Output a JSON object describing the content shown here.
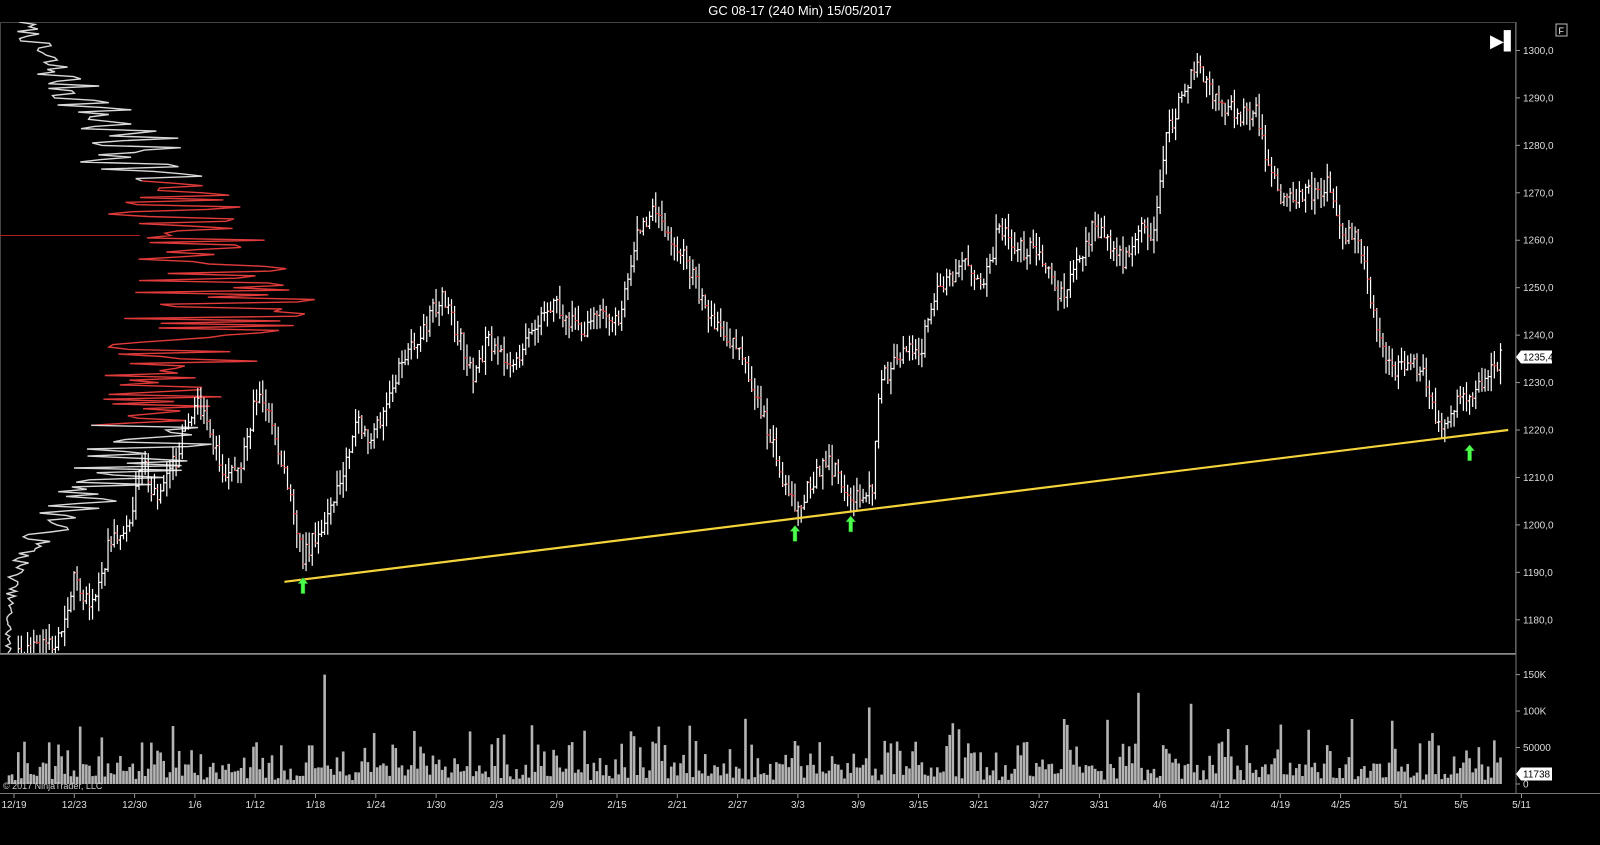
{
  "window": {
    "title": "GC 08-17 (240 Min)  15/05/2017"
  },
  "footer": {
    "copyright": "© 2017 NinjaTrader, LLC"
  },
  "buttons": {
    "end_label": "▶▌",
    "f_label": "F"
  },
  "colors": {
    "background": "#000000",
    "bar": "#ffffff",
    "bar_down": "#e03131",
    "trendline": "#f5d33a",
    "arrow": "#4cff4c",
    "volume": "#b4b4b4",
    "profile_low": "#d9d9d9",
    "profile_high": "#e03a3a"
  },
  "chart_data": [
    {
      "type": "ohlc",
      "name": "GC 08-17 (240 Min)",
      "x_ticks": [
        "12/19",
        "12/23",
        "12/30",
        "1/6",
        "1/12",
        "1/18",
        "1/24",
        "1/30",
        "2/3",
        "2/9",
        "2/15",
        "2/21",
        "2/27",
        "3/3",
        "3/9",
        "3/15",
        "3/21",
        "3/27",
        "3/31",
        "4/6",
        "4/12",
        "4/19",
        "4/25",
        "5/1",
        "5/5",
        "5/11"
      ],
      "y_ticks": [
        "1300,0",
        "1290,0",
        "1280,0",
        "1270,0",
        "1260,0",
        "1250,0",
        "1240,0",
        "1230,0",
        "1220,0",
        "1210,0",
        "1200,0",
        "1190,0",
        "1180,0"
      ],
      "ylim": [
        1173,
        1306
      ],
      "last_price": "1235,4",
      "price_path": [
        {
          "d": 0,
          "p": 1171
        },
        {
          "d": 3.2,
          "p": 1176
        },
        {
          "d": 4.2,
          "p": 1188
        },
        {
          "d": 5.4,
          "p": 1183
        },
        {
          "d": 6.5,
          "p": 1196
        },
        {
          "d": 7.8,
          "p": 1200
        },
        {
          "d": 8.6,
          "p": 1213
        },
        {
          "d": 9.6,
          "p": 1205
        },
        {
          "d": 10.8,
          "p": 1214
        },
        {
          "d": 12,
          "p": 1226
        },
        {
          "d": 13,
          "p": 1220
        },
        {
          "d": 14,
          "p": 1209
        },
        {
          "d": 15,
          "p": 1213
        },
        {
          "d": 16,
          "p": 1227
        },
        {
          "d": 17,
          "p": 1222
        },
        {
          "d": 18,
          "p": 1208
        },
        {
          "d": 19,
          "p": 1193
        },
        {
          "d": 20.5,
          "p": 1202
        },
        {
          "d": 21.5,
          "p": 1210
        },
        {
          "d": 22.5,
          "p": 1222
        },
        {
          "d": 23.5,
          "p": 1218
        },
        {
          "d": 25,
          "p": 1231
        },
        {
          "d": 26.5,
          "p": 1240
        },
        {
          "d": 28,
          "p": 1248
        },
        {
          "d": 29,
          "p": 1240
        },
        {
          "d": 30,
          "p": 1232
        },
        {
          "d": 31,
          "p": 1239
        },
        {
          "d": 32.5,
          "p": 1232
        },
        {
          "d": 33.5,
          "p": 1240
        },
        {
          "d": 35,
          "p": 1247
        },
        {
          "d": 36,
          "p": 1244
        },
        {
          "d": 37,
          "p": 1240
        },
        {
          "d": 38,
          "p": 1244
        },
        {
          "d": 39.5,
          "p": 1244
        },
        {
          "d": 40.5,
          "p": 1260
        },
        {
          "d": 41.5,
          "p": 1266
        },
        {
          "d": 42.5,
          "p": 1262
        },
        {
          "d": 43.5,
          "p": 1257
        },
        {
          "d": 44.5,
          "p": 1250
        },
        {
          "d": 46,
          "p": 1240
        },
        {
          "d": 47,
          "p": 1238
        },
        {
          "d": 48,
          "p": 1230
        },
        {
          "d": 49,
          "p": 1220
        },
        {
          "d": 50,
          "p": 1210
        },
        {
          "d": 51,
          "p": 1203
        },
        {
          "d": 52,
          "p": 1210
        },
        {
          "d": 53,
          "p": 1213
        },
        {
          "d": 54,
          "p": 1208
        },
        {
          "d": 55,
          "p": 1205
        },
        {
          "d": 55.8,
          "p": 1208
        },
        {
          "d": 56.3,
          "p": 1230
        },
        {
          "d": 57.5,
          "p": 1235
        },
        {
          "d": 59,
          "p": 1238
        },
        {
          "d": 60,
          "p": 1250
        },
        {
          "d": 61,
          "p": 1253
        },
        {
          "d": 62,
          "p": 1255
        },
        {
          "d": 63,
          "p": 1250
        },
        {
          "d": 64,
          "p": 1263
        },
        {
          "d": 65,
          "p": 1258
        },
        {
          "d": 66,
          "p": 1258
        },
        {
          "d": 67,
          "p": 1255
        },
        {
          "d": 68,
          "p": 1248
        },
        {
          "d": 69,
          "p": 1255
        },
        {
          "d": 70,
          "p": 1262
        },
        {
          "d": 71,
          "p": 1260
        },
        {
          "d": 72,
          "p": 1255
        },
        {
          "d": 73,
          "p": 1262
        },
        {
          "d": 74,
          "p": 1262
        },
        {
          "d": 74.8,
          "p": 1282
        },
        {
          "d": 76,
          "p": 1292
        },
        {
          "d": 76.8,
          "p": 1296
        },
        {
          "d": 78,
          "p": 1290
        },
        {
          "d": 79.5,
          "p": 1286
        },
        {
          "d": 80.5,
          "p": 1288
        },
        {
          "d": 81.5,
          "p": 1274
        },
        {
          "d": 82.5,
          "p": 1268
        },
        {
          "d": 83.5,
          "p": 1270
        },
        {
          "d": 84.5,
          "p": 1270
        },
        {
          "d": 85.3,
          "p": 1272
        },
        {
          "d": 86,
          "p": 1262
        },
        {
          "d": 87,
          "p": 1260
        },
        {
          "d": 87.8,
          "p": 1252
        },
        {
          "d": 88.5,
          "p": 1240
        },
        {
          "d": 89.5,
          "p": 1232
        },
        {
          "d": 90.5,
          "p": 1235
        },
        {
          "d": 91.5,
          "p": 1232
        },
        {
          "d": 92.5,
          "p": 1220
        },
        {
          "d": 93.5,
          "p": 1226
        },
        {
          "d": 95,
          "p": 1229
        },
        {
          "d": 96,
          "p": 1233
        },
        {
          "d": 96.5,
          "p": 1235.4
        }
      ]
    },
    {
      "type": "bar",
      "name": "Volume",
      "y_ticks": [
        "150K",
        "100K",
        "50000",
        "0"
      ],
      "ylim": [
        0,
        170000
      ],
      "last_value": "11738",
      "spikes": [
        {
          "d": 20.3,
          "v": 150000
        },
        {
          "d": 44.0,
          "v": 80000
        },
        {
          "d": 55.6,
          "v": 105000
        },
        {
          "d": 71.0,
          "v": 88000
        },
        {
          "d": 73.0,
          "v": 125000
        },
        {
          "d": 76.5,
          "v": 110000
        }
      ]
    }
  ],
  "trendline": {
    "start": {
      "d": 17.8,
      "p": 1188
    },
    "end": {
      "d": 96.9,
      "p": 1220
    }
  },
  "arrows": [
    {
      "d": 19,
      "p": 1187
    },
    {
      "d": 50.8,
      "p": 1198
    },
    {
      "d": 54.4,
      "p": 1200
    },
    {
      "d": 94.4,
      "p": 1215
    }
  ],
  "markers": {
    "hline_price": 1261
  }
}
